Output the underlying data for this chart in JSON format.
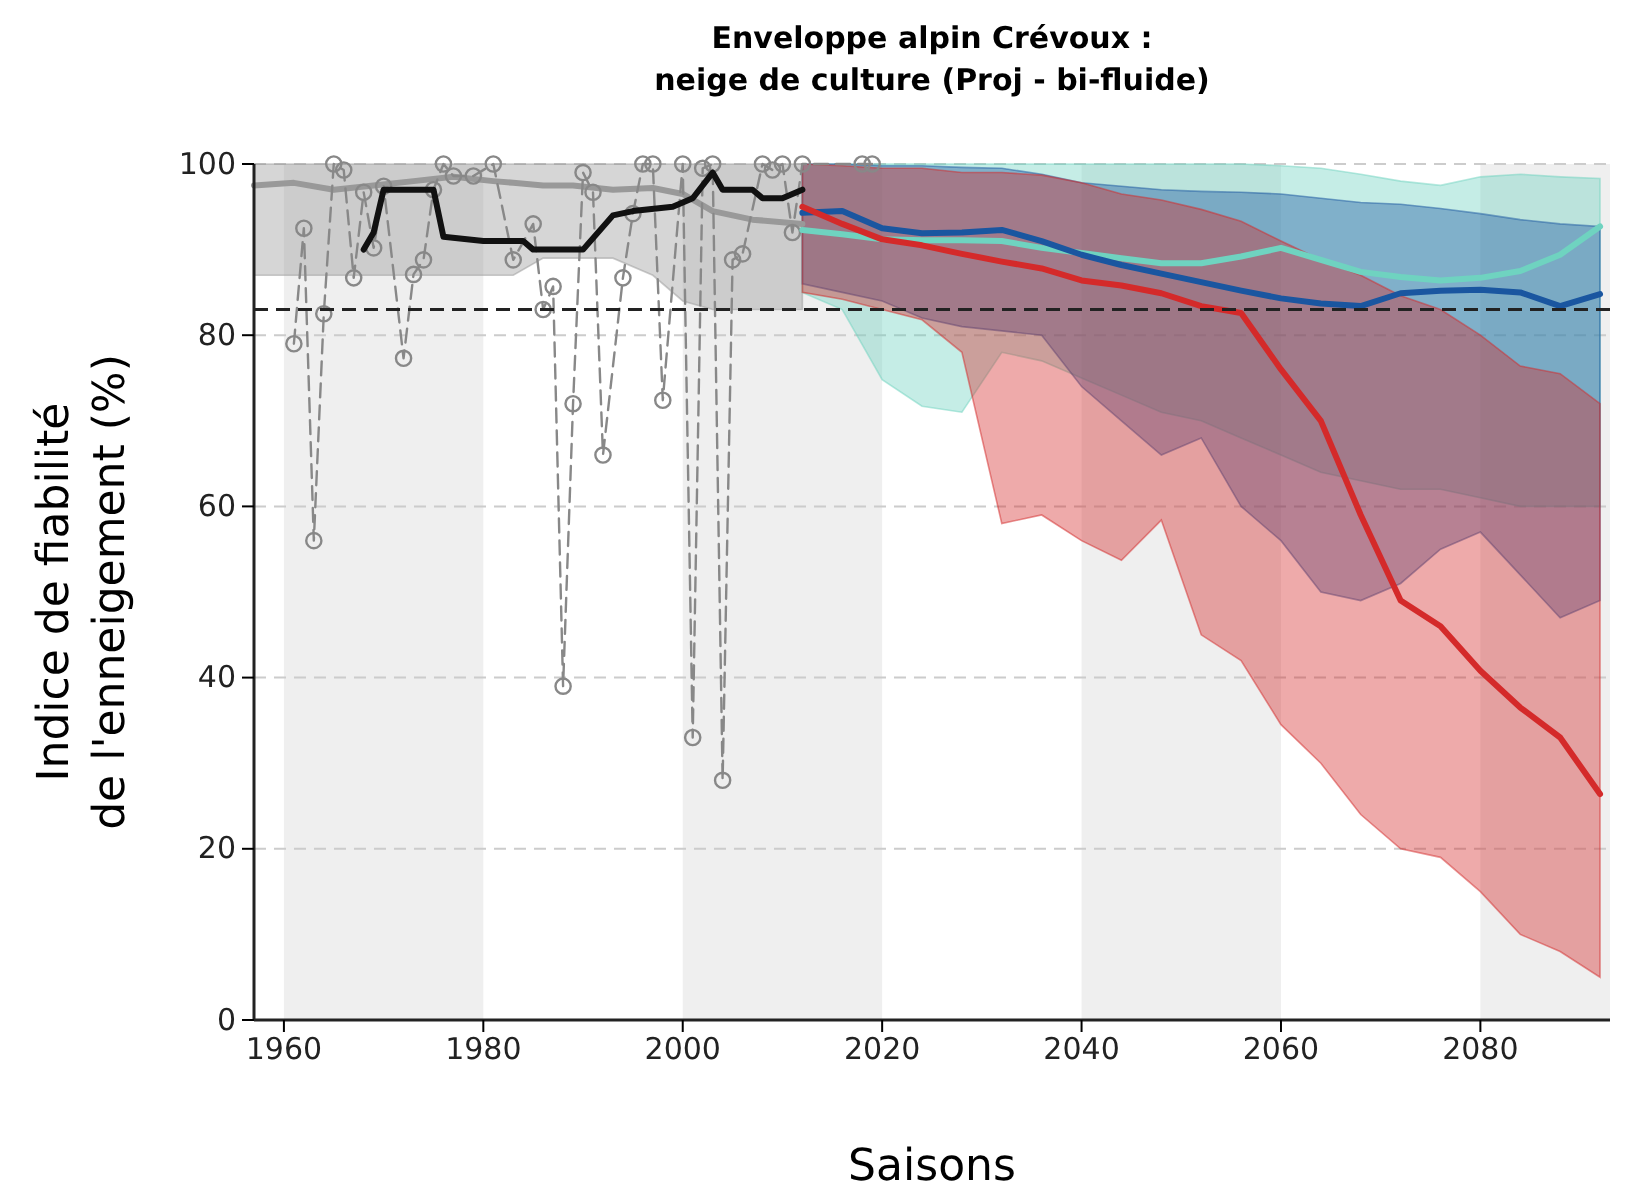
{
  "chart_data": {
    "type": "line",
    "title": "Enveloppe alpin Crévoux :\nneige de culture (Proj - bi-fluide)",
    "xlabel": "Saisons",
    "ylabel": "Indice de fiabilité\nde l'enneigement (%)",
    "xlim": [
      1957,
      2093
    ],
    "xticks": [
      1960,
      1980,
      2000,
      2020,
      2040,
      2060,
      2080
    ],
    "ylim": [
      0,
      100
    ],
    "yticks": [
      0,
      20,
      40,
      60,
      80,
      100
    ],
    "grid": "y",
    "bands": [
      {
        "axis": "x",
        "from": 1960,
        "to": 1980,
        "color": "#efefef"
      },
      {
        "axis": "x",
        "from": 2000,
        "to": 2020,
        "color": "#efefef"
      },
      {
        "axis": "x",
        "from": 2040,
        "to": 2060,
        "color": "#efefef"
      },
      {
        "axis": "x",
        "from": 2080,
        "to": 2093,
        "color": "#efefef"
      }
    ],
    "ref_lines": [
      {
        "axis": "y",
        "value": 83,
        "color": "#222222",
        "line_style": "dashed"
      }
    ],
    "series": [
      {
        "color": "#999999",
        "x": [
          1957,
          1961,
          1965,
          1969,
          1973,
          1977,
          1981,
          1983,
          1986,
          1989,
          1993,
          1997,
          2000,
          2003,
          2007,
          2012
        ],
        "values": [
          97.5,
          97.8,
          97,
          97.5,
          98,
          98.5,
          98,
          97.8,
          97.5,
          97.5,
          97,
          97.2,
          96.5,
          94.5,
          93.5,
          93
        ],
        "lower": [
          87,
          87,
          87,
          87,
          87,
          87,
          87,
          87,
          89,
          89,
          89,
          87,
          84,
          83,
          83,
          83
        ],
        "upper": [
          100,
          100,
          100,
          100,
          100,
          100,
          100,
          100,
          100,
          100,
          100,
          100,
          100,
          100,
          100,
          100
        ]
      },
      {
        "color": "#888888",
        "line_style": "dashed",
        "marker": "circle",
        "x": [
          1961,
          1962,
          1963,
          1964,
          1965,
          1966,
          1967,
          1968,
          1969,
          1970,
          1972,
          1973,
          1974,
          1975,
          1976,
          1977,
          1979,
          1981,
          1983,
          1985,
          1986,
          1987,
          1988,
          1989,
          1990,
          1991,
          1992,
          1994,
          1995,
          1996,
          1997,
          1998,
          2000,
          2001,
          2002,
          2003,
          2004,
          2005,
          2006,
          2008,
          2009,
          2010,
          2011,
          2012,
          2018,
          2019
        ],
        "values": [
          79,
          92.5,
          56,
          82.5,
          100,
          99.3,
          86.7,
          96.7,
          90.2,
          97.4,
          77.3,
          87.1,
          88.8,
          97,
          100,
          98.6,
          98.6,
          100,
          88.8,
          93,
          83,
          85.7,
          39,
          72,
          99,
          96.7,
          66,
          86.7,
          94.2,
          100,
          100,
          72.4,
          100,
          33,
          99.5,
          100,
          28,
          88.8,
          89.5,
          100,
          99.3,
          100,
          92,
          100,
          100,
          100
        ]
      },
      {
        "color": "#111111",
        "x": [
          1968,
          1969,
          1970,
          1975,
          1976,
          1980,
          1984,
          1985,
          1990,
          1993,
          1995,
          1999,
          2001,
          2003,
          2004,
          2007,
          2008,
          2010,
          2012
        ],
        "values": [
          90,
          92,
          97,
          97,
          91.5,
          91,
          91,
          90,
          90,
          94,
          94.5,
          95,
          96,
          99,
          97,
          97,
          96,
          96,
          97
        ]
      },
      {
        "color": "#6fd3c0",
        "x": [
          2012,
          2016,
          2020,
          2024,
          2028,
          2032,
          2036,
          2040,
          2044,
          2048,
          2052,
          2056,
          2060,
          2064,
          2068,
          2072,
          2076,
          2080,
          2084,
          2088,
          2092
        ],
        "values": [
          92.3,
          91.8,
          91.2,
          91.1,
          91.1,
          91,
          90.2,
          89.6,
          89,
          88.4,
          88.4,
          89.2,
          90.2,
          88.8,
          87.4,
          86.8,
          86.4,
          86.7,
          87.5,
          89.4,
          92.7
        ],
        "lower": [
          85,
          83,
          74.8,
          71.7,
          71,
          78,
          77,
          75,
          73,
          71,
          70,
          68,
          66,
          64,
          63,
          62,
          62,
          61,
          60,
          60,
          60
        ],
        "upper": [
          100,
          100,
          100,
          100,
          100,
          100,
          100,
          100,
          100,
          100,
          100,
          100,
          99.8,
          99.5,
          98.8,
          98,
          97.5,
          98.5,
          98.8,
          98.5,
          98.3
        ]
      },
      {
        "color": "#1a56a0",
        "x": [
          2012,
          2016,
          2020,
          2024,
          2028,
          2032,
          2036,
          2040,
          2044,
          2048,
          2052,
          2056,
          2060,
          2064,
          2068,
          2072,
          2076,
          2080,
          2084,
          2088,
          2092
        ],
        "values": [
          94.3,
          94.5,
          92.5,
          91.9,
          92,
          92.3,
          91,
          89.4,
          88.2,
          87.2,
          86.2,
          85.2,
          84.3,
          83.7,
          83.4,
          84.9,
          85.2,
          85.3,
          85,
          83.4,
          84.8
        ],
        "lower": [
          86,
          85,
          84,
          82,
          81,
          80.5,
          80,
          74,
          70,
          66,
          68,
          60,
          56,
          50,
          49,
          51,
          55,
          57,
          52,
          47,
          49
        ],
        "upper": [
          100,
          100,
          99.8,
          99.8,
          99.6,
          99.5,
          98.8,
          97.8,
          97.4,
          97,
          96.8,
          96.7,
          96.5,
          96,
          95.5,
          95.3,
          94.8,
          94.2,
          93.5,
          93,
          92.7
        ]
      },
      {
        "color": "#d42a2a",
        "x": [
          2012,
          2016,
          2020,
          2024,
          2028,
          2032,
          2036,
          2040,
          2044,
          2048,
          2052,
          2056,
          2060,
          2064,
          2068,
          2072,
          2076,
          2080,
          2084,
          2088,
          2092
        ],
        "values": [
          95,
          93,
          91.2,
          90.5,
          89.5,
          88.6,
          87.8,
          86.4,
          85.8,
          84.9,
          83.4,
          82.6,
          76,
          70,
          59,
          49,
          46,
          40.8,
          36.5,
          33,
          26.4
        ],
        "lower": [
          85,
          84.2,
          83,
          81.8,
          78,
          58,
          59,
          56,
          53.7,
          58.4,
          45,
          42,
          34.5,
          30,
          24,
          20,
          19,
          15,
          10,
          8,
          5
        ],
        "upper": [
          100,
          99.8,
          99.5,
          99.5,
          99,
          99,
          98.7,
          97.8,
          96.5,
          95.8,
          94.7,
          93.3,
          91,
          88.8,
          87,
          84.6,
          83,
          80,
          76.4,
          75.5,
          72
        ]
      }
    ]
  }
}
